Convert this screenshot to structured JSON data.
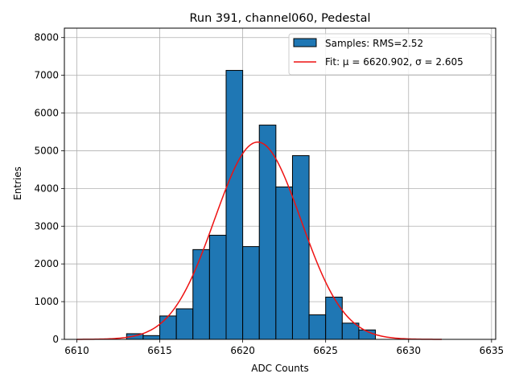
{
  "chart_data": {
    "type": "bar",
    "title": "Run 391, channel060, Pedestal",
    "xlabel": "ADC Counts",
    "ylabel": "Entries",
    "xlim": [
      6609.25,
      6635.25
    ],
    "ylim": [
      0,
      8250
    ],
    "xticks": [
      6610,
      6615,
      6620,
      6625,
      6630,
      6635
    ],
    "yticks": [
      0,
      1000,
      2000,
      3000,
      4000,
      5000,
      6000,
      7000,
      8000
    ],
    "grid": true,
    "legend_position": "top-right",
    "bin_width": 1,
    "bins": [
      6613,
      6614,
      6615,
      6616,
      6617,
      6618,
      6619,
      6620,
      6621,
      6622,
      6623,
      6624,
      6625,
      6626,
      6627
    ],
    "values": [
      150,
      100,
      620,
      810,
      2380,
      2760,
      7130,
      2460,
      5680,
      4040,
      4870,
      650,
      1120,
      430,
      250
    ],
    "bar_color": "#1f77b4",
    "fit": {
      "mu": 6620.902,
      "sigma": 2.605,
      "amplitude": 5230,
      "x_range": [
        6610,
        6632
      ],
      "color": "#ee1111"
    },
    "legend": [
      {
        "label": "Samples: RMS=2.52"
      },
      {
        "label": "Fit: μ = 6620.902, σ = 2.605"
      }
    ]
  }
}
